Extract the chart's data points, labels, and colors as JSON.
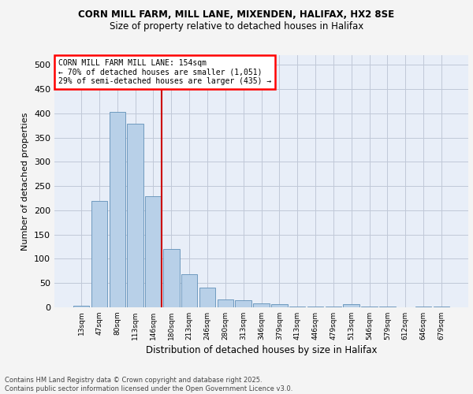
{
  "title_line1": "CORN MILL FARM, MILL LANE, MIXENDEN, HALIFAX, HX2 8SE",
  "title_line2": "Size of property relative to detached houses in Halifax",
  "xlabel": "Distribution of detached houses by size in Halifax",
  "ylabel": "Number of detached properties",
  "categories": [
    "13sqm",
    "47sqm",
    "80sqm",
    "113sqm",
    "146sqm",
    "180sqm",
    "213sqm",
    "246sqm",
    "280sqm",
    "313sqm",
    "346sqm",
    "379sqm",
    "413sqm",
    "446sqm",
    "479sqm",
    "513sqm",
    "546sqm",
    "579sqm",
    "612sqm",
    "646sqm",
    "679sqm"
  ],
  "values": [
    3,
    220,
    403,
    378,
    229,
    120,
    68,
    40,
    17,
    14,
    8,
    6,
    1,
    1,
    1,
    7,
    2,
    1,
    0,
    1,
    2
  ],
  "bar_color": "#b8d0e8",
  "bar_edge_color": "#6090b8",
  "annotation_line1": "CORN MILL FARM MILL LANE: 154sqm",
  "annotation_line2": "← 70% of detached houses are smaller (1,051)",
  "annotation_line3": "29% of semi-detached houses are larger (435) →",
  "vline_color": "#cc0000",
  "vline_x_index": 4,
  "ylim_max": 520,
  "yticks": [
    0,
    50,
    100,
    150,
    200,
    250,
    300,
    350,
    400,
    450,
    500
  ],
  "background_color": "#e8eef8",
  "grid_color": "#c0c8d8",
  "fig_bg_color": "#f4f4f4",
  "footer": "Contains HM Land Registry data © Crown copyright and database right 2025.\nContains public sector information licensed under the Open Government Licence v3.0."
}
